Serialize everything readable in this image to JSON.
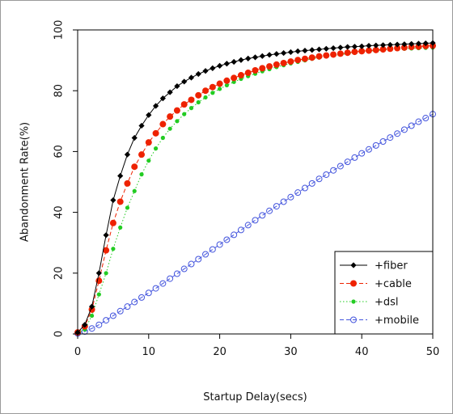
{
  "chart_data": {
    "type": "line",
    "title": "",
    "xlabel": "Startup Delay(secs)",
    "ylabel": "Abandonment Rate(%)",
    "xlim": [
      0,
      50
    ],
    "ylim": [
      0,
      100
    ],
    "xticks": [
      0,
      10,
      20,
      30,
      40,
      50
    ],
    "yticks": [
      0,
      20,
      40,
      60,
      80,
      100
    ],
    "grid": false,
    "legend_position": "bottom-right",
    "x": [
      0,
      1,
      2,
      3,
      4,
      5,
      6,
      7,
      8,
      9,
      10,
      11,
      12,
      13,
      14,
      15,
      16,
      17,
      18,
      19,
      20,
      21,
      22,
      23,
      24,
      25,
      26,
      27,
      28,
      29,
      30,
      31,
      32,
      33,
      34,
      35,
      36,
      37,
      38,
      39,
      40,
      41,
      42,
      43,
      44,
      45,
      46,
      47,
      48,
      49,
      50
    ],
    "series": [
      {
        "name": "+fiber",
        "color": "#000000",
        "marker": "diamond",
        "line": "solid",
        "values": [
          0.5,
          3,
          9,
          20,
          32.5,
          44,
          52,
          59,
          64.5,
          68.5,
          72,
          75,
          77.5,
          79.5,
          81.5,
          83,
          84.3,
          85.5,
          86.5,
          87.4,
          88.2,
          88.9,
          89.5,
          90.1,
          90.6,
          91,
          91.4,
          91.8,
          92.1,
          92.4,
          92.7,
          93,
          93.2,
          93.4,
          93.6,
          93.8,
          94,
          94.2,
          94.4,
          94.5,
          94.6,
          94.8,
          94.9,
          95,
          95.1,
          95.2,
          95.3,
          95.4,
          95.5,
          95.6,
          95.7
        ]
      },
      {
        "name": "+cable",
        "color": "#ee2200",
        "marker": "circle-filled",
        "line": "dashed",
        "values": [
          0.5,
          2.5,
          8,
          17.5,
          27.5,
          36.5,
          43.5,
          49.5,
          55,
          59,
          63,
          66,
          69,
          71.5,
          73.5,
          75.5,
          77,
          78.5,
          80,
          81.2,
          82.3,
          83.3,
          84.2,
          85.1,
          85.9,
          86.7,
          87.4,
          88,
          88.6,
          89.1,
          89.6,
          90.1,
          90.5,
          90.9,
          91.3,
          91.6,
          91.9,
          92.2,
          92.5,
          92.8,
          93,
          93.2,
          93.4,
          93.6,
          93.8,
          94,
          94.2,
          94.4,
          94.5,
          94.7,
          94.8
        ]
      },
      {
        "name": "+dsl",
        "color": "#22cc22",
        "marker": "dot-filled",
        "line": "dotted",
        "values": [
          0.3,
          1.5,
          6,
          13,
          20,
          28,
          35,
          41.5,
          47,
          52.5,
          57,
          61,
          64.5,
          67.5,
          70,
          72.3,
          74.3,
          76.2,
          77.8,
          79.3,
          80.6,
          81.8,
          82.9,
          83.9,
          84.8,
          85.6,
          86.4,
          87.1,
          87.8,
          88.4,
          89,
          89.5,
          90,
          90.5,
          90.9,
          91.3,
          91.6,
          91.9,
          92.2,
          92.5,
          92.8,
          93,
          93.2,
          93.4,
          93.6,
          93.7,
          93.8,
          93.9,
          94,
          94.1,
          94.2
        ]
      },
      {
        "name": "+mobile",
        "color": "#4455dd",
        "marker": "circle-open",
        "line": "dashed",
        "values": [
          0.2,
          0.8,
          1.8,
          3,
          4.5,
          6,
          7.5,
          9,
          10.5,
          12,
          13.5,
          15,
          16.6,
          18.2,
          19.8,
          21.4,
          23,
          24.6,
          26.2,
          27.8,
          29.4,
          31,
          32.6,
          34.2,
          35.8,
          37.4,
          39,
          40.5,
          42,
          43.5,
          45,
          46.5,
          48,
          49.5,
          51,
          52.4,
          53.8,
          55.2,
          56.6,
          58,
          59.4,
          60.7,
          62,
          63.3,
          64.6,
          65.9,
          67.2,
          68.5,
          69.8,
          71,
          72.3
        ]
      }
    ]
  }
}
